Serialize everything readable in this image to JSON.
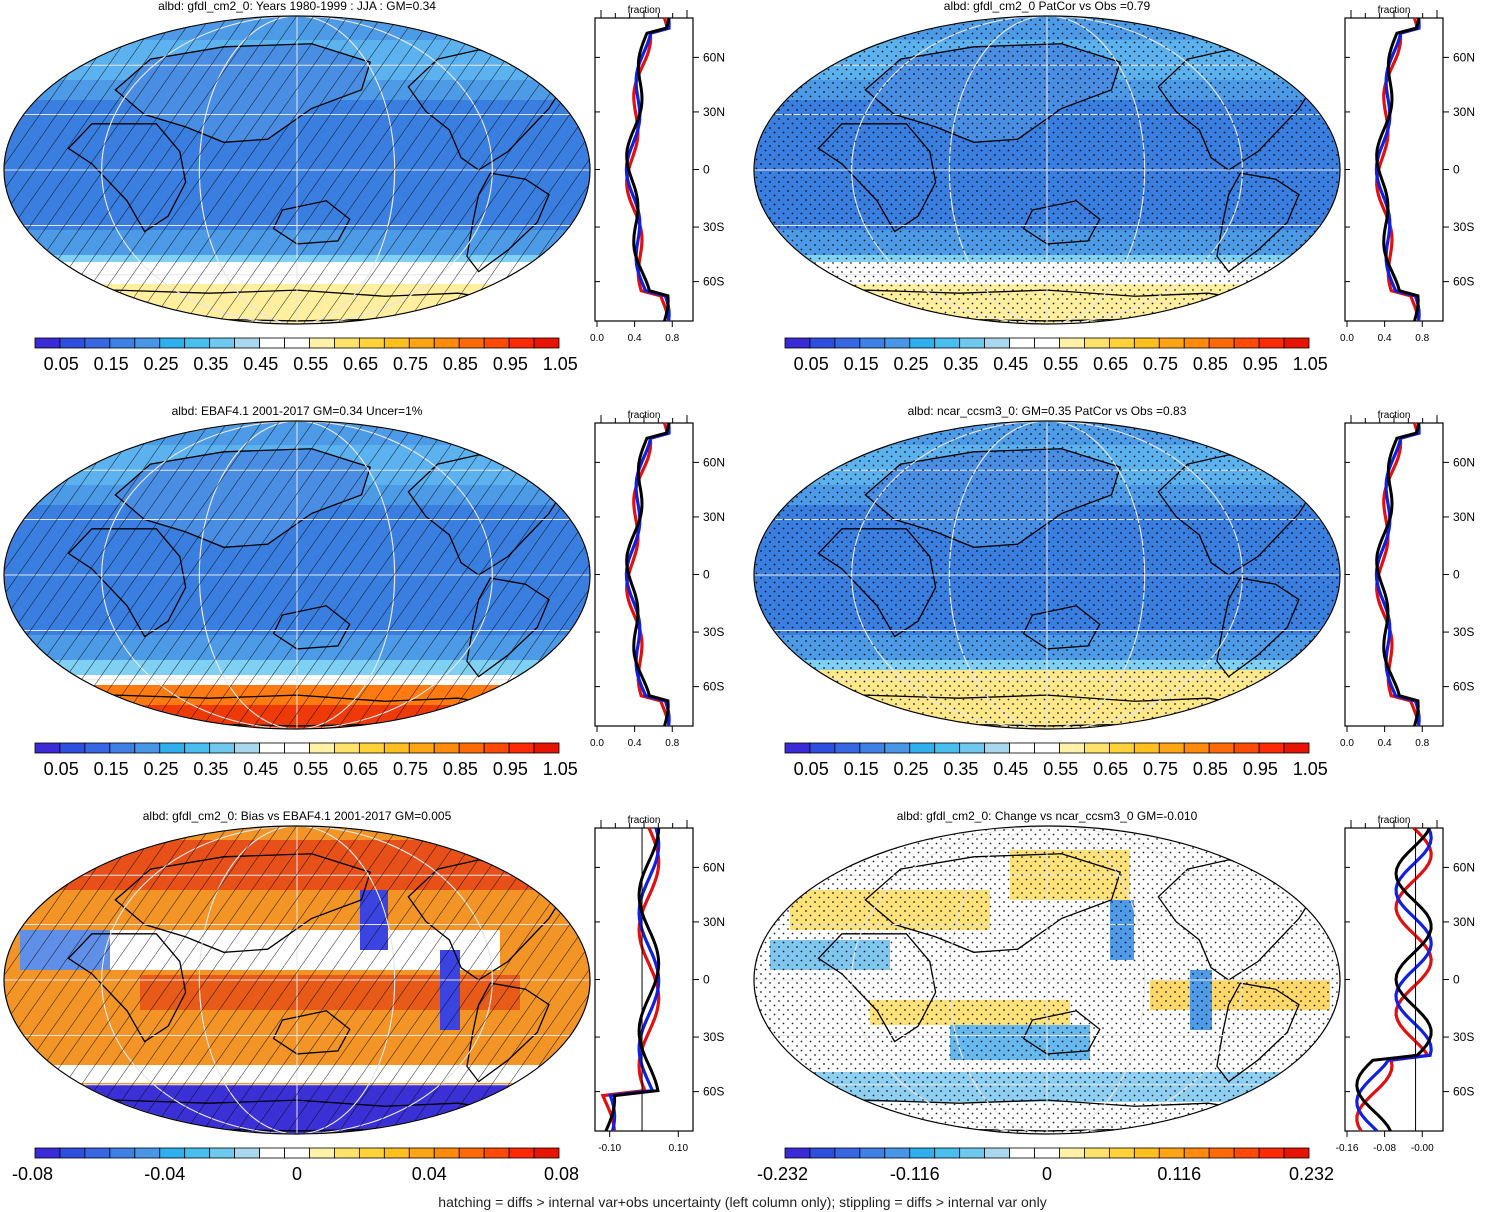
{
  "panels": [
    {
      "title": "albd: gfdl_cm2_0: Years 1980-1999 : JJA : GM=0.34",
      "kind": "mean",
      "pattern": "hatch",
      "colorbar": {
        "ticks": [
          "0.05",
          "0.15",
          "0.25",
          "0.35",
          "0.45",
          "0.55",
          "0.65",
          "0.75",
          "0.85",
          "0.95",
          "1.05"
        ],
        "colors": [
          "#3a2bd6",
          "#2e4ee0",
          "#3867e3",
          "#3f80e6",
          "#4896e8",
          "#2fb0ee",
          "#49bff0",
          "#6fc9ef",
          "#a9d8ee",
          "#ffffff",
          "#ffffff",
          "#fff2a8",
          "#ffe26a",
          "#ffd23a",
          "#ffbf1f",
          "#ffa414",
          "#ff8a0c",
          "#ff6a08",
          "#ff4a06",
          "#ff2a04",
          "#e81402"
        ]
      },
      "profile": {
        "label": "fraction",
        "xticks": [
          "0.0",
          "0.4",
          "0.8"
        ],
        "yticks": [
          "60N",
          "30N",
          "0",
          "30S",
          "60S"
        ]
      }
    },
    {
      "title": "albd: gfdl_cm2_0 PatCor vs Obs =0.79",
      "kind": "mean",
      "pattern": "stipple",
      "colorbar": {
        "ticks": [
          "0.05",
          "0.15",
          "0.25",
          "0.35",
          "0.45",
          "0.55",
          "0.65",
          "0.75",
          "0.85",
          "0.95",
          "1.05"
        ],
        "colors": [
          "#3a2bd6",
          "#2e4ee0",
          "#3867e3",
          "#3f80e6",
          "#4896e8",
          "#2fb0ee",
          "#49bff0",
          "#6fc9ef",
          "#a9d8ee",
          "#ffffff",
          "#ffffff",
          "#fff2a8",
          "#ffe26a",
          "#ffd23a",
          "#ffbf1f",
          "#ffa414",
          "#ff8a0c",
          "#ff6a08",
          "#ff4a06",
          "#ff2a04",
          "#e81402"
        ]
      },
      "profile": {
        "label": "fraction",
        "xticks": [
          "0.0",
          "0.4",
          "0.8"
        ],
        "yticks": [
          "60N",
          "30N",
          "0",
          "30S",
          "60S"
        ]
      }
    },
    {
      "title": "albd: EBAF4.1 2001-2017 GM=0.34 Uncer=1%",
      "kind": "obs",
      "pattern": "hatch",
      "colorbar": {
        "ticks": [
          "0.05",
          "0.15",
          "0.25",
          "0.35",
          "0.45",
          "0.55",
          "0.65",
          "0.75",
          "0.85",
          "0.95",
          "1.05"
        ],
        "colors": [
          "#3a2bd6",
          "#2e4ee0",
          "#3867e3",
          "#3f80e6",
          "#4896e8",
          "#2fb0ee",
          "#49bff0",
          "#6fc9ef",
          "#a9d8ee",
          "#ffffff",
          "#ffffff",
          "#fff2a8",
          "#ffe26a",
          "#ffd23a",
          "#ffbf1f",
          "#ffa414",
          "#ff8a0c",
          "#ff6a08",
          "#ff4a06",
          "#ff2a04",
          "#e81402"
        ]
      },
      "profile": {
        "label": "fraction",
        "xticks": [
          "0.0",
          "0.4",
          "0.8"
        ],
        "yticks": [
          "60N",
          "30N",
          "0",
          "30S",
          "60S"
        ]
      }
    },
    {
      "title": "albd: ncar_ccsm3_0: GM=0.35 PatCor vs Obs =0.83",
      "kind": "mean",
      "pattern": "stipple",
      "colorbar": {
        "ticks": [
          "0.05",
          "0.15",
          "0.25",
          "0.35",
          "0.45",
          "0.55",
          "0.65",
          "0.75",
          "0.85",
          "0.95",
          "1.05"
        ],
        "colors": [
          "#3a2bd6",
          "#2e4ee0",
          "#3867e3",
          "#3f80e6",
          "#4896e8",
          "#2fb0ee",
          "#49bff0",
          "#6fc9ef",
          "#a9d8ee",
          "#ffffff",
          "#ffffff",
          "#fff2a8",
          "#ffe26a",
          "#ffd23a",
          "#ffbf1f",
          "#ffa414",
          "#ff8a0c",
          "#ff6a08",
          "#ff4a06",
          "#ff2a04",
          "#e81402"
        ]
      },
      "profile": {
        "label": "fraction",
        "xticks": [
          "0.0",
          "0.4",
          "0.8"
        ],
        "yticks": [
          "60N",
          "30N",
          "0",
          "30S",
          "60S"
        ]
      }
    },
    {
      "title": "albd: gfdl_cm2_0: Bias vs EBAF4.1 2001-2017 GM=0.005",
      "kind": "bias",
      "pattern": "hatch",
      "colorbar": {
        "ticks": [
          "-0.08",
          "-0.04",
          "0",
          "0.04",
          "0.08"
        ],
        "colors": [
          "#3a2bd6",
          "#2e4ee0",
          "#3867e3",
          "#3f80e6",
          "#4896e8",
          "#2fb0ee",
          "#49bff0",
          "#6fc9ef",
          "#a9d8ee",
          "#ffffff",
          "#ffffff",
          "#fff2a8",
          "#ffe26a",
          "#ffd23a",
          "#ffbf1f",
          "#ffa414",
          "#ff8a0c",
          "#ff6a08",
          "#ff4a06",
          "#ff2a04",
          "#e81402"
        ]
      },
      "profile": {
        "label": "fraction",
        "xticks": [
          "-0.10",
          "0.10"
        ],
        "yticks": [
          "60N",
          "30N",
          "0",
          "30S",
          "60S"
        ]
      }
    },
    {
      "title": "albd: gfdl_cm2_0: Change vs ncar_ccsm3_0 GM=-0.010",
      "kind": "change",
      "pattern": "stipple",
      "colorbar": {
        "ticks": [
          "-0.232",
          "-0.116",
          "0",
          "0.116",
          "0.232"
        ],
        "colors": [
          "#3a2bd6",
          "#2e4ee0",
          "#3867e3",
          "#3f80e6",
          "#4896e8",
          "#2fb0ee",
          "#49bff0",
          "#6fc9ef",
          "#a9d8ee",
          "#ffffff",
          "#ffffff",
          "#fff2a8",
          "#ffe26a",
          "#ffd23a",
          "#ffbf1f",
          "#ffa414",
          "#ff8a0c",
          "#ff6a08",
          "#ff4a06",
          "#ff2a04",
          "#e81402"
        ]
      },
      "profile": {
        "label": "fraction",
        "xticks": [
          "-0.16",
          "-0.08",
          "-0.00"
        ],
        "yticks": [
          "60N",
          "30N",
          "0",
          "30S",
          "60S"
        ]
      }
    }
  ],
  "footer": "hatching = diffs > internal var+obs uncertainty (left column only); stippling = diffs > internal var only"
}
